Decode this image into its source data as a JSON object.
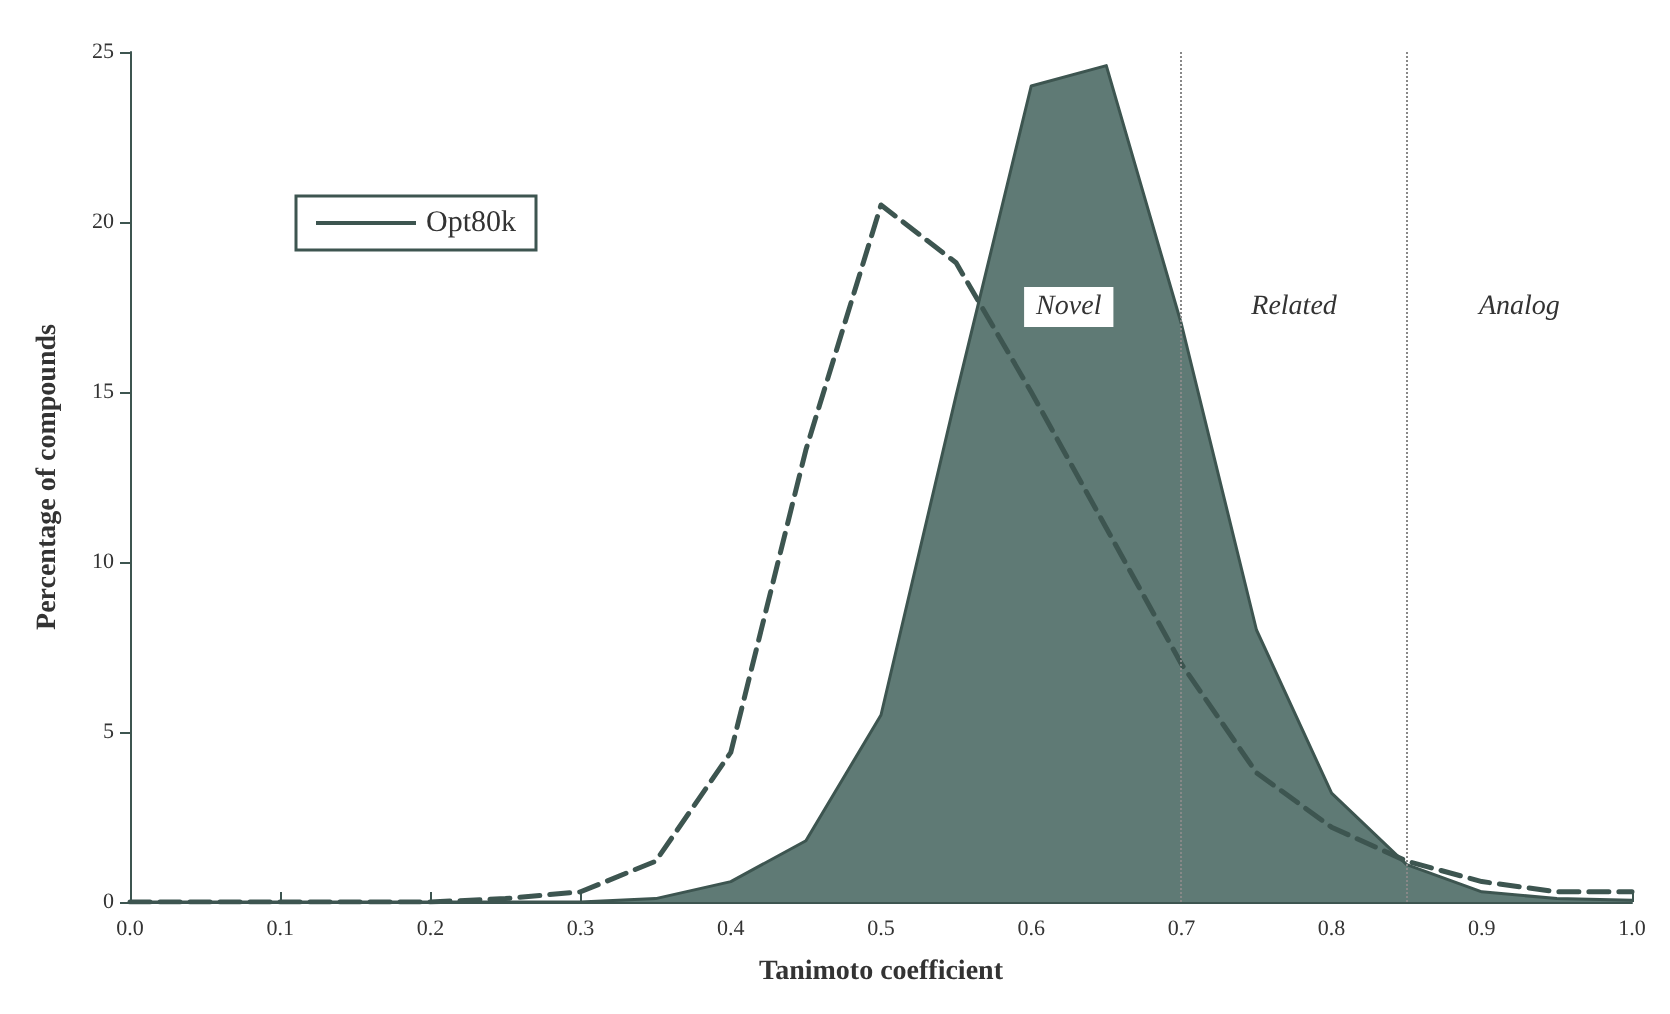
{
  "chart_data": {
    "type": "line",
    "xlabel": "Tanimoto coefficient",
    "ylabel": "Percentage of compounds",
    "x": [
      0,
      0.05,
      0.1,
      0.15,
      0.2,
      0.25,
      0.3,
      0.35,
      0.4,
      0.45,
      0.5,
      0.55,
      0.6,
      0.65,
      0.7,
      0.75,
      0.8,
      0.85,
      0.9,
      0.95,
      1.0
    ],
    "series": [
      {
        "name": "Opt80k",
        "type": "area",
        "color": "#5f7a75",
        "values": [
          0,
          0,
          0,
          0,
          0,
          0,
          0,
          0.1,
          0.6,
          1.8,
          5.5,
          14.9,
          24,
          24.6,
          17,
          8,
          3.2,
          1.1,
          0.3,
          0.1,
          0.05
        ]
      },
      {
        "color": "#3d5550",
        "line_style": "dashed",
        "values": [
          0,
          0,
          0,
          0,
          0,
          0.1,
          0.3,
          1.2,
          4.4,
          13.3,
          20.5,
          18.8,
          15,
          11,
          7,
          3.8,
          2.2,
          1.2,
          0.6,
          0.3,
          0.3
        ]
      }
    ],
    "xlim": [
      0,
      1
    ],
    "xticks": [
      {
        "value": 0,
        "label": "0.0"
      },
      0.1,
      0.2,
      0.3,
      0.4,
      0.5,
      0.6,
      0.7,
      0.8,
      0.9,
      {
        "value": 1,
        "label": "1.0"
      }
    ],
    "ylim": [
      0,
      25
    ],
    "yticks": [
      0,
      5,
      10,
      15,
      20,
      25
    ],
    "ref_lines": [
      {
        "axis": "x",
        "value": 0.7,
        "color": "#888888",
        "line_style": "dotted"
      },
      {
        "axis": "x",
        "value": 0.85,
        "color": "#888888",
        "line_style": "dotted"
      }
    ],
    "annotations": [
      "Novel",
      "Related",
      "Analog"
    ],
    "legend": "top left",
    "grid": false,
    "marker": "none"
  }
}
